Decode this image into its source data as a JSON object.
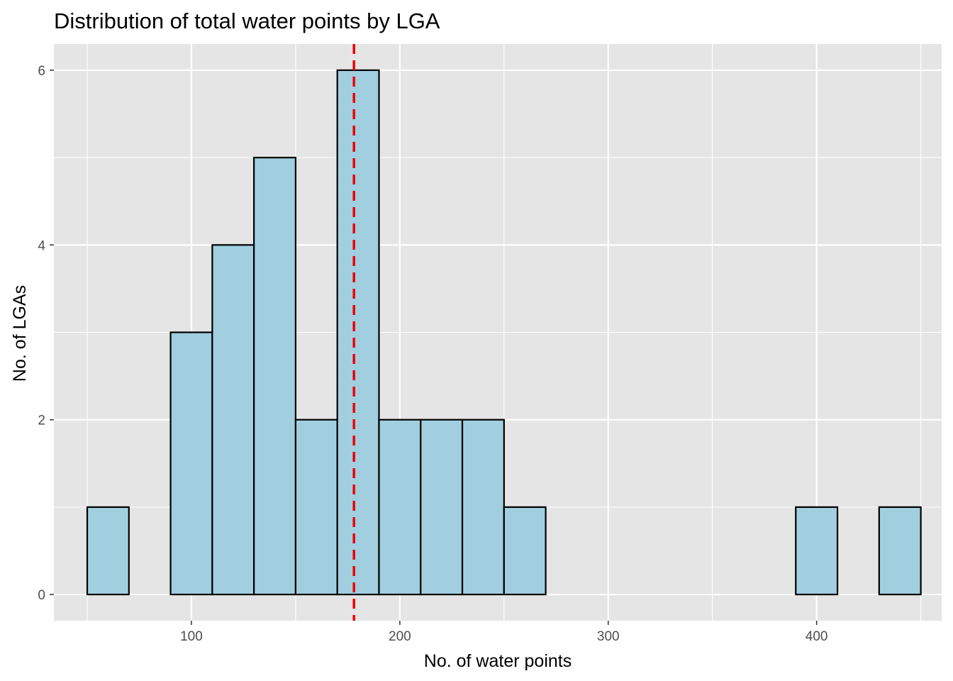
{
  "chart_data": {
    "type": "bar",
    "title": "Distribution of total water points by LGA",
    "xlabel": "No. of water points",
    "ylabel": "No. of LGAs",
    "bin_width": 20,
    "bins": [
      {
        "x0": 50,
        "x1": 70,
        "count": 1
      },
      {
        "x0": 70,
        "x1": 90,
        "count": 0
      },
      {
        "x0": 90,
        "x1": 110,
        "count": 3
      },
      {
        "x0": 110,
        "x1": 130,
        "count": 4
      },
      {
        "x0": 130,
        "x1": 150,
        "count": 5
      },
      {
        "x0": 150,
        "x1": 170,
        "count": 2
      },
      {
        "x0": 170,
        "x1": 190,
        "count": 6
      },
      {
        "x0": 190,
        "x1": 210,
        "count": 2
      },
      {
        "x0": 210,
        "x1": 230,
        "count": 2
      },
      {
        "x0": 230,
        "x1": 250,
        "count": 2
      },
      {
        "x0": 250,
        "x1": 270,
        "count": 1
      },
      {
        "x0": 270,
        "x1": 290,
        "count": 0
      },
      {
        "x0": 290,
        "x1": 310,
        "count": 0
      },
      {
        "x0": 310,
        "x1": 330,
        "count": 0
      },
      {
        "x0": 330,
        "x1": 350,
        "count": 0
      },
      {
        "x0": 350,
        "x1": 370,
        "count": 0
      },
      {
        "x0": 370,
        "x1": 390,
        "count": 0
      },
      {
        "x0": 390,
        "x1": 410,
        "count": 1
      },
      {
        "x0": 410,
        "x1": 430,
        "count": 0
      },
      {
        "x0": 430,
        "x1": 450,
        "count": 1
      }
    ],
    "mean_line": {
      "x": 178,
      "color": "#ee0000",
      "style": "dashed"
    },
    "xlim": [
      34,
      460
    ],
    "ylim": [
      -0.3,
      6.3
    ],
    "x_ticks": [
      100,
      200,
      300,
      400
    ],
    "x_tick_labels": [
      "100",
      "200",
      "300",
      "400"
    ],
    "y_ticks": [
      0,
      2,
      4,
      6
    ],
    "y_tick_labels": [
      "0",
      "2",
      "4",
      "6"
    ],
    "grid": true,
    "legend": "none",
    "colors": {
      "bar_fill": "#a1cfe0",
      "bar_outline": "#000000",
      "panel_background": "#e5e5e5",
      "grid": "#ffffff"
    }
  }
}
